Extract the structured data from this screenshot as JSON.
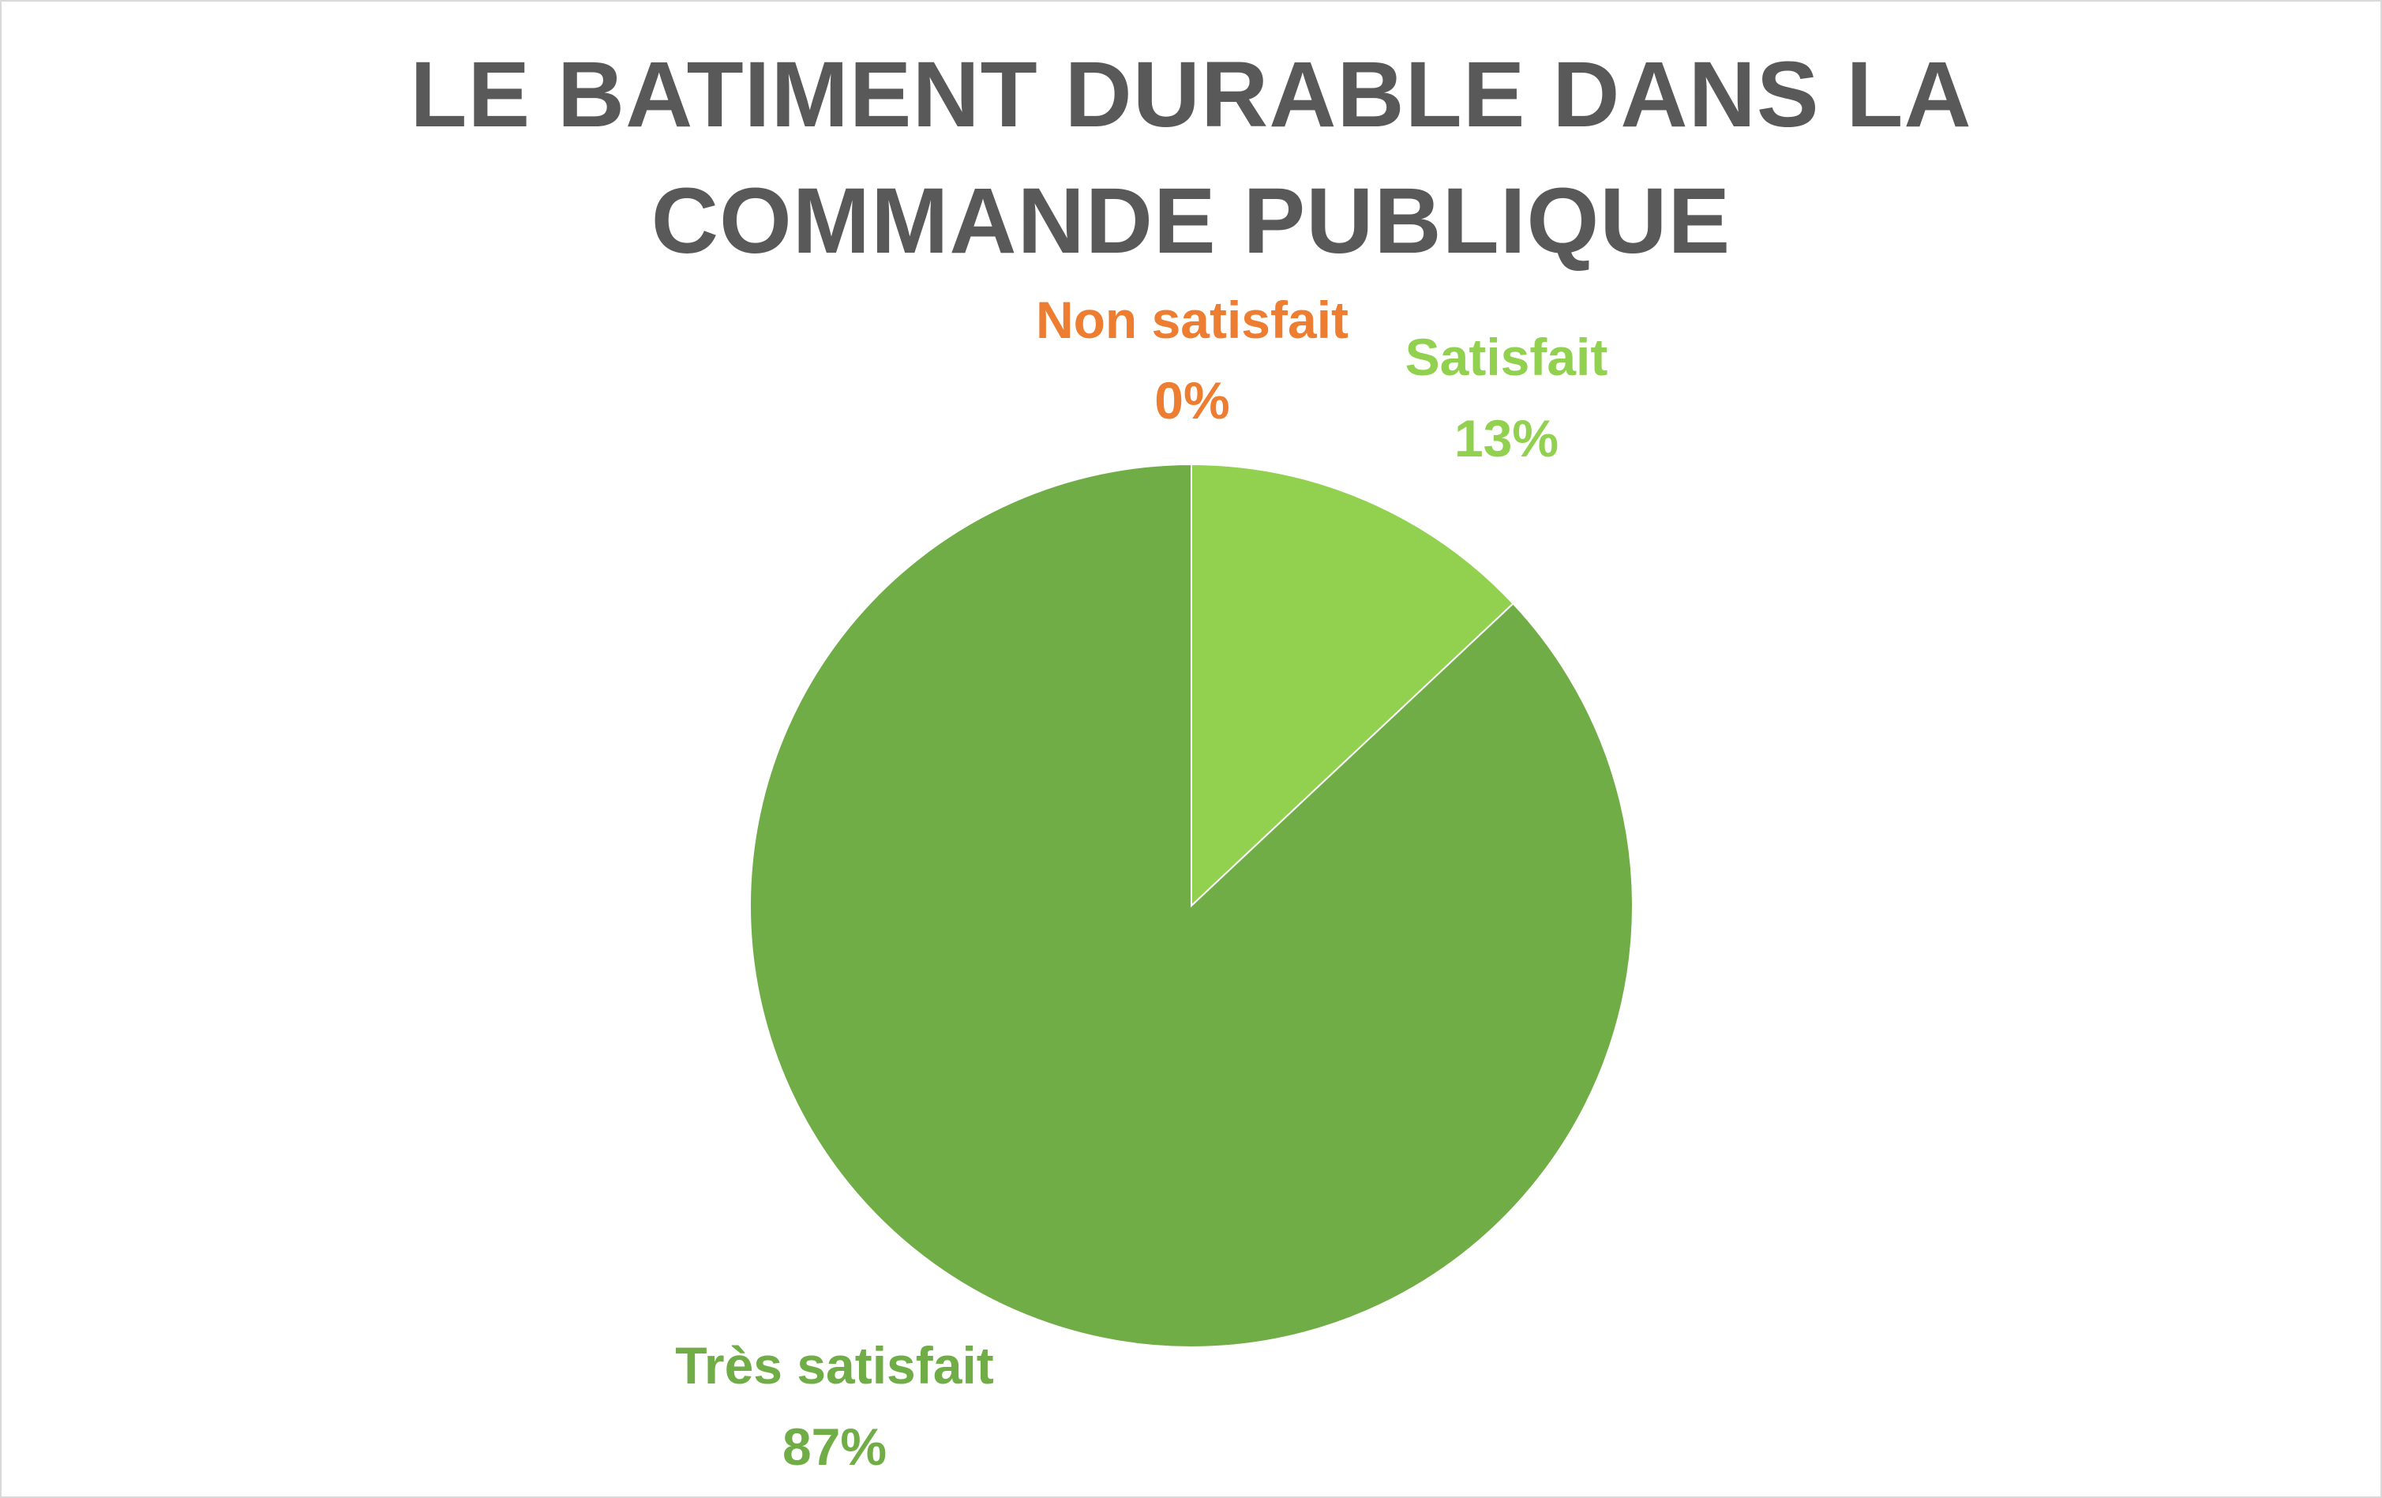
{
  "chart_data": {
    "type": "pie",
    "title_lines": [
      "LE BATIMENT DURABLE DANS LA",
      "COMMANDE PUBLIQUE"
    ],
    "categories": [
      "Non satisfait",
      "Satisfait",
      "Très satisfait"
    ],
    "values": [
      0,
      13,
      87
    ],
    "value_labels": [
      "0%",
      "13%",
      "87%"
    ],
    "colors": [
      "#ed7d31",
      "#92d050",
      "#70ad47"
    ],
    "start_angle_deg": 0,
    "direction": "clockwise",
    "legend": "none",
    "data_labels": "category-and-percent"
  }
}
